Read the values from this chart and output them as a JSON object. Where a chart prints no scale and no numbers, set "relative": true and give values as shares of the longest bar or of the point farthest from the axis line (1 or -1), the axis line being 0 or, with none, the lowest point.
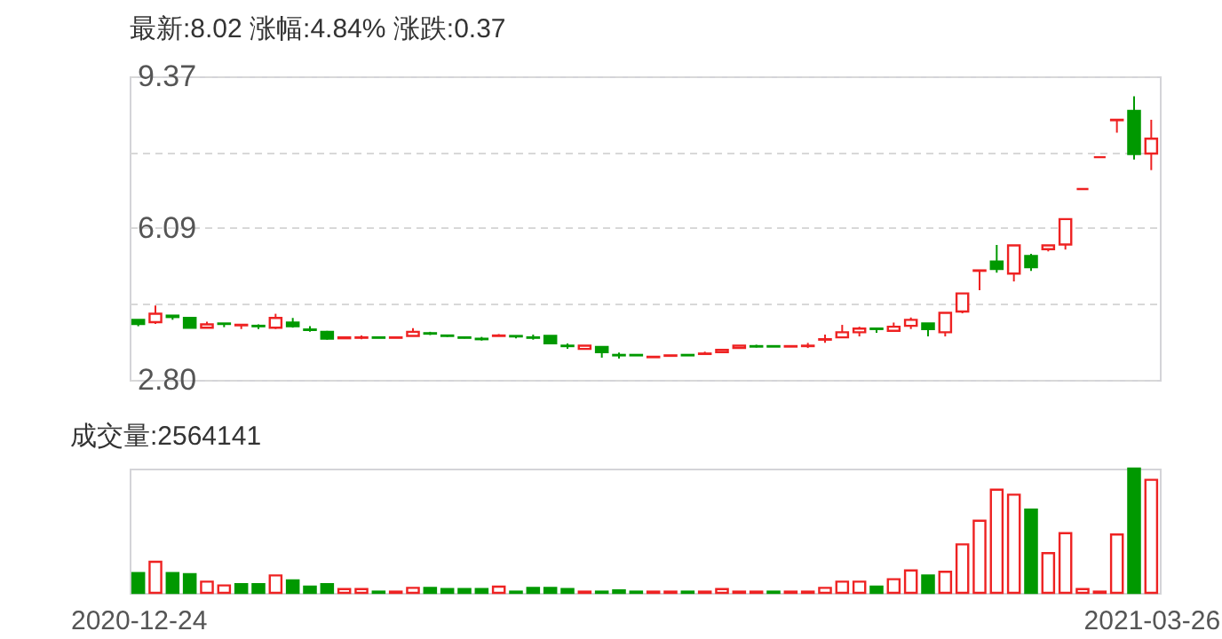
{
  "chart_data": [
    {
      "type": "candlestick",
      "title": "最新:8.02   涨幅:4.84%   涨跌:0.37",
      "categories": [
        null,
        null,
        null,
        null,
        null,
        null,
        null,
        null,
        null,
        null,
        null,
        null,
        null,
        null,
        null,
        null,
        null,
        null,
        null,
        null,
        null,
        null,
        null,
        null,
        null,
        null,
        null,
        null,
        null,
        null,
        null,
        null,
        null,
        null,
        null,
        null,
        null,
        null,
        null,
        null,
        null,
        null,
        null,
        null,
        null,
        null,
        null,
        null,
        null,
        null,
        null,
        null,
        null,
        null,
        null,
        null,
        null,
        null,
        null,
        null
      ],
      "ohlc": [
        [
          4.1,
          4.1,
          3.96,
          4.01
        ],
        [
          4.05,
          4.41,
          4.01,
          4.23
        ],
        [
          4.19,
          4.19,
          4.1,
          4.16
        ],
        [
          4.14,
          4.14,
          3.93,
          3.93
        ],
        [
          3.93,
          4.06,
          3.93,
          4.0
        ],
        [
          4.02,
          4.02,
          3.94,
          4.01
        ],
        [
          3.98,
          3.99,
          3.9,
          3.99
        ],
        [
          3.97,
          4.0,
          3.9,
          3.96
        ],
        [
          3.93,
          4.23,
          3.9,
          4.14
        ],
        [
          4.04,
          4.14,
          3.93,
          3.96
        ],
        [
          3.89,
          3.96,
          3.84,
          3.88
        ],
        [
          3.84,
          3.86,
          3.67,
          3.69
        ],
        [
          3.7,
          3.72,
          3.7,
          3.72
        ],
        [
          3.71,
          3.76,
          3.68,
          3.72
        ],
        [
          3.72,
          3.72,
          3.71,
          3.71
        ],
        [
          3.71,
          3.72,
          3.71,
          3.72
        ],
        [
          3.75,
          3.92,
          3.75,
          3.84
        ],
        [
          3.81,
          3.84,
          3.77,
          3.8
        ],
        [
          3.76,
          3.78,
          3.73,
          3.75
        ],
        [
          3.72,
          3.72,
          3.7,
          3.71
        ],
        [
          3.69,
          3.73,
          3.65,
          3.68
        ],
        [
          3.75,
          3.79,
          3.75,
          3.76
        ],
        [
          3.75,
          3.76,
          3.7,
          3.74
        ],
        [
          3.72,
          3.78,
          3.67,
          3.71
        ],
        [
          3.75,
          3.76,
          3.59,
          3.59
        ],
        [
          3.54,
          3.59,
          3.47,
          3.53
        ],
        [
          3.47,
          3.54,
          3.47,
          3.54
        ],
        [
          3.51,
          3.52,
          3.28,
          3.4
        ],
        [
          3.34,
          3.39,
          3.26,
          3.33
        ],
        [
          3.34,
          3.35,
          3.32,
          3.33
        ],
        [
          3.29,
          3.3,
          3.29,
          3.3
        ],
        [
          3.32,
          3.33,
          3.32,
          3.33
        ],
        [
          3.34,
          3.34,
          3.33,
          3.33
        ],
        [
          3.36,
          3.41,
          3.36,
          3.37
        ],
        [
          3.4,
          3.45,
          3.4,
          3.45
        ],
        [
          3.49,
          3.54,
          3.49,
          3.54
        ],
        [
          3.53,
          3.56,
          3.5,
          3.52
        ],
        [
          3.53,
          3.53,
          3.52,
          3.52
        ],
        [
          3.52,
          3.53,
          3.52,
          3.53
        ],
        [
          3.53,
          3.6,
          3.49,
          3.54
        ],
        [
          3.67,
          3.78,
          3.6,
          3.68
        ],
        [
          3.72,
          3.99,
          3.72,
          3.83
        ],
        [
          3.83,
          3.95,
          3.74,
          3.91
        ],
        [
          3.91,
          3.91,
          3.82,
          3.9
        ],
        [
          3.86,
          4.04,
          3.86,
          3.95
        ],
        [
          3.97,
          4.15,
          3.9,
          4.1
        ],
        [
          4.02,
          4.02,
          3.74,
          3.9
        ],
        [
          3.83,
          4.25,
          3.74,
          4.25
        ],
        [
          4.28,
          4.67,
          4.24,
          4.67
        ],
        [
          5.16,
          5.17,
          4.74,
          5.17
        ],
        [
          5.36,
          5.72,
          5.12,
          5.2
        ],
        [
          5.1,
          5.71,
          4.93,
          5.71
        ],
        [
          5.48,
          5.53,
          5.16,
          5.24
        ],
        [
          5.63,
          5.71,
          5.58,
          5.71
        ],
        [
          5.73,
          6.28,
          5.62,
          6.28
        ],
        [
          6.93,
          6.93,
          6.93,
          6.93
        ],
        [
          7.62,
          7.62,
          7.62,
          7.62
        ],
        [
          8.42,
          8.43,
          8.15,
          8.43
        ],
        [
          8.62,
          8.94,
          7.57,
          7.69
        ],
        [
          7.7,
          8.43,
          7.34,
          8.02
        ]
      ],
      "colors": [
        "#009900",
        "#ee2222",
        "#009900",
        "#009900",
        "#ee2222",
        "#009900",
        "#ee2222",
        "#009900",
        "#ee2222",
        "#009900",
        "#009900",
        "#009900",
        "#ee2222",
        "#ee2222",
        "#009900",
        "#ee2222",
        "#ee2222",
        "#009900",
        "#009900",
        "#009900",
        "#009900",
        "#ee2222",
        "#009900",
        "#009900",
        "#009900",
        "#009900",
        "#ee2222",
        "#009900",
        "#009900",
        "#009900",
        "#ee2222",
        "#ee2222",
        "#009900",
        "#ee2222",
        "#ee2222",
        "#ee2222",
        "#009900",
        "#009900",
        "#ee2222",
        "#ee2222",
        "#ee2222",
        "#ee2222",
        "#ee2222",
        "#009900",
        "#ee2222",
        "#ee2222",
        "#009900",
        "#ee2222",
        "#ee2222",
        "#ee2222",
        "#009900",
        "#ee2222",
        "#009900",
        "#ee2222",
        "#ee2222",
        "#ee2222",
        "#ee2222",
        "#ee2222",
        "#009900",
        "#ee2222"
      ],
      "ylim": [
        2.8,
        9.37
      ],
      "yticks": [
        {
          "value": 2.8,
          "label": "2.80"
        },
        {
          "value": 4.445,
          "label": null
        },
        6.09,
        {
          "value": 7.73,
          "label": null
        },
        9.37
      ],
      "grid": true,
      "tick_labels": "y"
    },
    {
      "type": "bar",
      "title": "成交量:2564141",
      "relative": true,
      "tick_labels": "x",
      "categories": [
        "2020-12-24",
        null,
        null,
        null,
        null,
        null,
        null,
        null,
        null,
        null,
        null,
        null,
        null,
        null,
        null,
        null,
        null,
        null,
        null,
        null,
        null,
        null,
        null,
        null,
        null,
        null,
        null,
        null,
        null,
        null,
        null,
        null,
        null,
        null,
        null,
        null,
        null,
        null,
        null,
        null,
        null,
        null,
        null,
        null,
        null,
        null,
        null,
        null,
        null,
        null,
        null,
        null,
        null,
        null,
        null,
        null,
        null,
        null,
        null,
        "2021-03-26"
      ],
      "values": [
        0.16,
        0.25,
        0.16,
        0.15,
        0.09,
        0.06,
        0.07,
        0.07,
        0.14,
        0.1,
        0.05,
        0.07,
        0.03,
        0.03,
        0.01,
        0.01,
        0.04,
        0.04,
        0.03,
        0.03,
        0.03,
        0.05,
        0.01,
        0.04,
        0.04,
        0.03,
        0.01,
        0.01,
        0.02,
        0.01,
        0.01,
        0.01,
        0.01,
        0.01,
        0.03,
        0.01,
        0.01,
        0.01,
        0.01,
        0.01,
        0.04,
        0.09,
        0.09,
        0.05,
        0.11,
        0.18,
        0.14,
        0.17,
        0.39,
        0.58,
        0.83,
        0.79,
        0.67,
        0.32,
        0.48,
        0.03,
        0.01,
        0.47,
        1,
        0.91
      ],
      "colors": [
        "#009900",
        "#ee2222",
        "#009900",
        "#009900",
        "#ee2222",
        "#ee2222",
        "#009900",
        "#009900",
        "#ee2222",
        "#009900",
        "#009900",
        "#009900",
        "#ee2222",
        "#ee2222",
        "#009900",
        "#ee2222",
        "#ee2222",
        "#009900",
        "#009900",
        "#009900",
        "#009900",
        "#ee2222",
        "#009900",
        "#009900",
        "#009900",
        "#009900",
        "#ee2222",
        "#009900",
        "#009900",
        "#009900",
        "#ee2222",
        "#ee2222",
        "#009900",
        "#ee2222",
        "#ee2222",
        "#ee2222",
        "#ee2222",
        "#009900",
        "#ee2222",
        "#ee2222",
        "#ee2222",
        "#ee2222",
        "#ee2222",
        "#009900",
        "#ee2222",
        "#ee2222",
        "#009900",
        "#ee2222",
        "#ee2222",
        "#ee2222",
        "#ee2222",
        "#ee2222",
        "#009900",
        "#ee2222",
        "#ee2222",
        "#ee2222",
        "#ee2222",
        "#ee2222",
        "#009900",
        "#ee2222"
      ]
    }
  ]
}
